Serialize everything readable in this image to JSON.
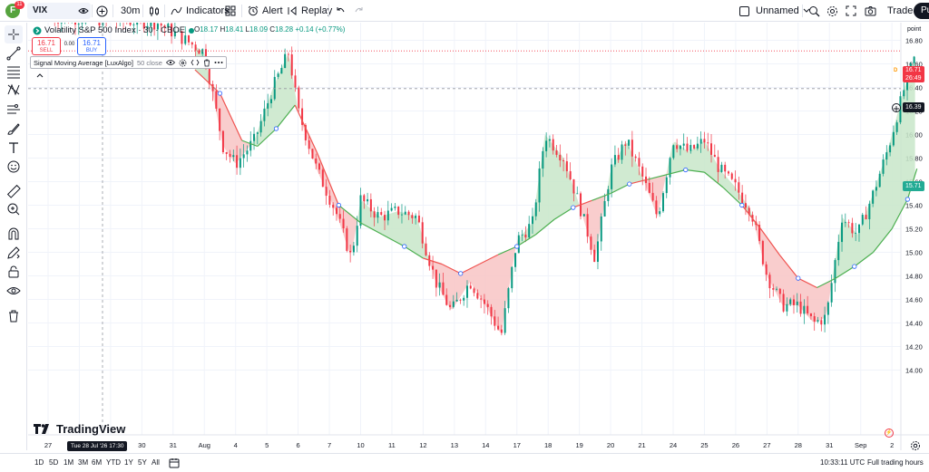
{
  "topbar": {
    "avatar_letter": "F",
    "notification_count": "11",
    "symbol": "VIX",
    "interval": "30m",
    "indicators_label": "Indicators",
    "alert_label": "Alert",
    "replay_label": "Replay",
    "layout_name": "Unnamed",
    "trade_label": "Trade",
    "publish_label": "Pu"
  },
  "legend": {
    "title": "Volatility S&P 500 Index · 30 · CBOE",
    "open_label": "O",
    "open": "18.17",
    "high_label": "H",
    "high": "18.41",
    "low_label": "L",
    "low": "18.09",
    "close_label": "C",
    "close": "18.28",
    "change": "+0.14 (+0.77%)",
    "sell_price": "16.71",
    "sell_label": "SELL",
    "buy_price": "16.71",
    "buy_label": "BUY",
    "spread": "0.00",
    "indicator_name": "Signal Moving Average [LuxAlgo]",
    "indicator_params": "50 close"
  },
  "price_scale": {
    "label": "point",
    "last_price": "16.71",
    "countdown": "26:49",
    "crosshair_price": "16.39",
    "sma_price": "15.71"
  },
  "time_axis": {
    "crosshair_date": "Tue 28 Jul '26   17:30",
    "labels": [
      "27",
      "28",
      "29",
      "30",
      "31",
      "Aug",
      "4",
      "5",
      "6",
      "7",
      "10",
      "11",
      "12",
      "13",
      "14",
      "17",
      "18",
      "19",
      "20",
      "21",
      "24",
      "25",
      "26",
      "27",
      "28",
      "31",
      "Sep",
      "2"
    ]
  },
  "bottombar": {
    "ranges": [
      "1D",
      "5D",
      "1M",
      "3M",
      "6M",
      "YTD",
      "1Y",
      "5Y",
      "All"
    ],
    "clock": "10:33:11 UTC",
    "session": "Full trading hours"
  },
  "watermark": "TradingView",
  "colors": {
    "up": "#089981",
    "down": "#f23645",
    "bull_fill": "#c8e6c9",
    "bear_fill": "#f8c4c4",
    "sma_line_up": "#4caf50",
    "sma_line_down": "#f05350",
    "accent": "#2962ff"
  },
  "chart_data": {
    "type": "candlestick",
    "symbol": "VIX",
    "timeframe": "30",
    "y_ticks": [
      14.0,
      14.2,
      14.4,
      14.6,
      14.8,
      15.0,
      15.2,
      15.4,
      15.6,
      15.8,
      16.0,
      16.2,
      16.4,
      16.6,
      16.8
    ],
    "ylim": [
      13.45,
      16.95
    ],
    "x_labels": [
      "27",
      "28",
      "29",
      "30",
      "31",
      "Aug",
      "4",
      "5",
      "6",
      "7",
      "10",
      "11",
      "12",
      "13",
      "14",
      "17",
      "18",
      "19",
      "20",
      "21",
      "24",
      "25",
      "26",
      "27",
      "28",
      "31",
      "Sep",
      "2"
    ],
    "price_path": [
      {
        "i": 0,
        "p": 17.0
      },
      {
        "i": 3.5,
        "p": 16.95
      },
      {
        "i": 5.0,
        "p": 16.7
      },
      {
        "i": 5.6,
        "p": 15.9
      },
      {
        "i": 6.0,
        "p": 15.75
      },
      {
        "i": 6.6,
        "p": 15.95
      },
      {
        "i": 7.2,
        "p": 16.4
      },
      {
        "i": 7.7,
        "p": 16.7
      },
      {
        "i": 8.0,
        "p": 16.2
      },
      {
        "i": 8.6,
        "p": 15.7
      },
      {
        "i": 9.2,
        "p": 15.35
      },
      {
        "i": 9.7,
        "p": 14.95
      },
      {
        "i": 10.0,
        "p": 15.45
      },
      {
        "i": 10.6,
        "p": 15.3
      },
      {
        "i": 11.2,
        "p": 15.35
      },
      {
        "i": 11.8,
        "p": 15.3
      },
      {
        "i": 12.4,
        "p": 14.75
      },
      {
        "i": 12.9,
        "p": 14.5
      },
      {
        "i": 13.5,
        "p": 14.75
      },
      {
        "i": 14.0,
        "p": 14.55
      },
      {
        "i": 14.5,
        "p": 14.3
      },
      {
        "i": 15.0,
        "p": 15.1
      },
      {
        "i": 15.5,
        "p": 15.25
      },
      {
        "i": 15.9,
        "p": 16.0
      },
      {
        "i": 16.5,
        "p": 15.8
      },
      {
        "i": 17.0,
        "p": 15.4
      },
      {
        "i": 17.5,
        "p": 14.95
      },
      {
        "i": 18.0,
        "p": 15.7
      },
      {
        "i": 18.5,
        "p": 15.95
      },
      {
        "i": 19.0,
        "p": 15.65
      },
      {
        "i": 19.5,
        "p": 15.3
      },
      {
        "i": 20.0,
        "p": 15.95
      },
      {
        "i": 20.5,
        "p": 15.85
      },
      {
        "i": 21.0,
        "p": 15.95
      },
      {
        "i": 21.5,
        "p": 15.7
      },
      {
        "i": 22.0,
        "p": 15.55
      },
      {
        "i": 22.5,
        "p": 15.35
      },
      {
        "i": 23.0,
        "p": 14.8
      },
      {
        "i": 23.5,
        "p": 14.55
      },
      {
        "i": 24.0,
        "p": 14.55
      },
      {
        "i": 24.5,
        "p": 14.4
      },
      {
        "i": 24.9,
        "p": 14.45
      },
      {
        "i": 25.4,
        "p": 15.3
      },
      {
        "i": 25.9,
        "p": 15.15
      },
      {
        "i": 26.4,
        "p": 15.5
      },
      {
        "i": 26.9,
        "p": 15.9
      },
      {
        "i": 27.4,
        "p": 16.4
      },
      {
        "i": 27.8,
        "p": 16.71
      }
    ],
    "sma_path": [
      {
        "i": 4.7,
        "p": 16.55
      },
      {
        "i": 5.5,
        "p": 16.35
      },
      {
        "i": 6.2,
        "p": 15.95
      },
      {
        "i": 6.7,
        "p": 15.9
      },
      {
        "i": 7.3,
        "p": 16.05
      },
      {
        "i": 7.9,
        "p": 16.25
      },
      {
        "i": 8.6,
        "p": 15.85
      },
      {
        "i": 9.3,
        "p": 15.4
      },
      {
        "i": 10.0,
        "p": 15.25
      },
      {
        "i": 10.7,
        "p": 15.15
      },
      {
        "i": 11.4,
        "p": 15.05
      },
      {
        "i": 12.0,
        "p": 14.95
      },
      {
        "i": 12.6,
        "p": 14.9
      },
      {
        "i": 13.2,
        "p": 14.82
      },
      {
        "i": 13.8,
        "p": 14.9
      },
      {
        "i": 14.4,
        "p": 14.98
      },
      {
        "i": 15.0,
        "p": 15.05
      },
      {
        "i": 15.6,
        "p": 15.15
      },
      {
        "i": 16.2,
        "p": 15.28
      },
      {
        "i": 16.8,
        "p": 15.38
      },
      {
        "i": 17.4,
        "p": 15.44
      },
      {
        "i": 18.0,
        "p": 15.5
      },
      {
        "i": 18.6,
        "p": 15.58
      },
      {
        "i": 19.2,
        "p": 15.62
      },
      {
        "i": 19.8,
        "p": 15.66
      },
      {
        "i": 20.4,
        "p": 15.7
      },
      {
        "i": 21.0,
        "p": 15.68
      },
      {
        "i": 21.6,
        "p": 15.55
      },
      {
        "i": 22.2,
        "p": 15.4
      },
      {
        "i": 22.8,
        "p": 15.2
      },
      {
        "i": 23.4,
        "p": 14.98
      },
      {
        "i": 24.0,
        "p": 14.78
      },
      {
        "i": 24.6,
        "p": 14.7
      },
      {
        "i": 25.2,
        "p": 14.78
      },
      {
        "i": 25.8,
        "p": 14.88
      },
      {
        "i": 26.4,
        "p": 15.0
      },
      {
        "i": 27.0,
        "p": 15.2
      },
      {
        "i": 27.5,
        "p": 15.45
      },
      {
        "i": 27.8,
        "p": 15.71
      }
    ]
  }
}
